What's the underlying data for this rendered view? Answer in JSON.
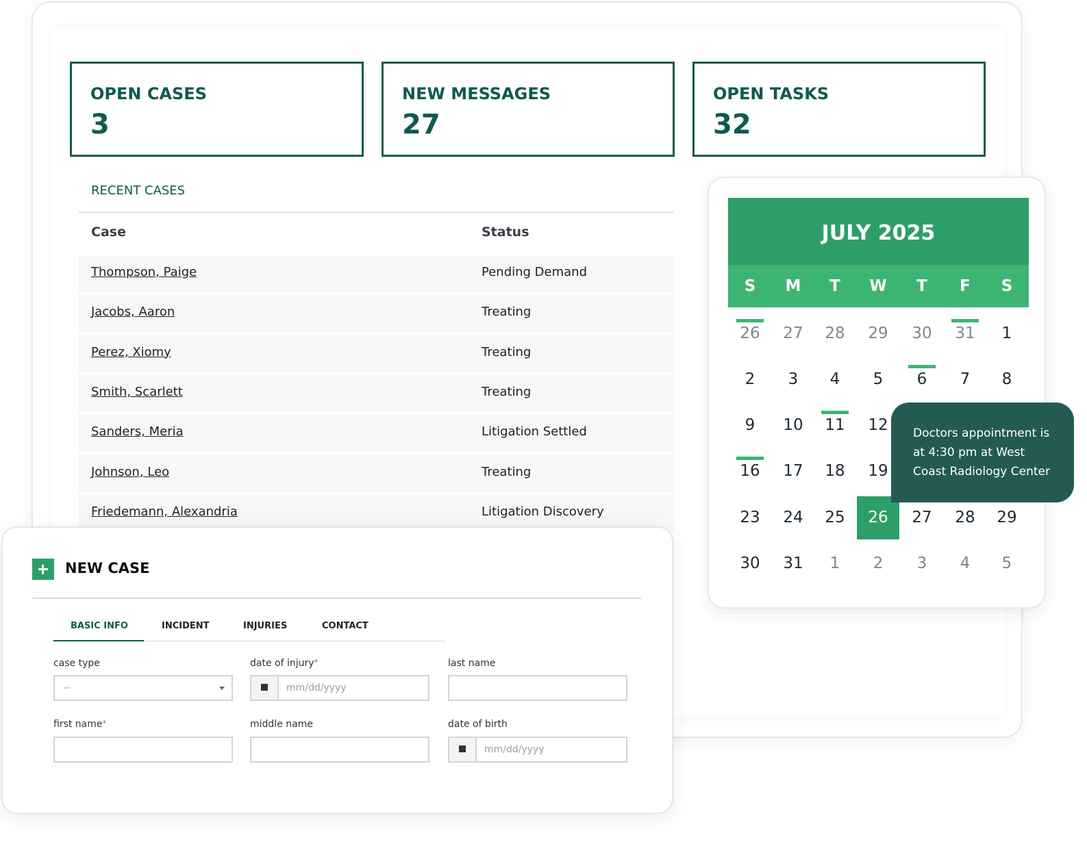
{
  "stats": [
    {
      "label": "OPEN CASES",
      "value": 3
    },
    {
      "label": "NEW MESSAGES",
      "value": 27
    },
    {
      "label": "OPEN TASKS",
      "value": 32
    }
  ],
  "recent_cases": {
    "title": "RECENT CASES",
    "columns": [
      "Case",
      "Status"
    ],
    "rows": [
      [
        "Thompson, Paige",
        "Pending Demand"
      ],
      [
        "Jacobs, Aaron",
        "Treating"
      ],
      [
        "Perez, Xiomy",
        "Treating"
      ],
      [
        "Smith, Scarlett",
        "Treating"
      ],
      [
        "Sanders, Meria",
        "Litigation Settled"
      ],
      [
        "Johnson, Leo",
        "Treating"
      ],
      [
        "Friedemann, Alexandria",
        "Litigation Discovery"
      ]
    ]
  },
  "calendar": {
    "title": "JULY 2025",
    "weekdays": [
      "S",
      "M",
      "T",
      "W",
      "T",
      "F",
      "S"
    ],
    "weeks": [
      [
        26,
        27,
        28,
        29,
        30,
        31,
        1
      ],
      [
        2,
        3,
        4,
        5,
        6,
        7,
        8
      ],
      [
        9,
        10,
        11,
        12,
        null,
        null,
        null
      ],
      [
        16,
        17,
        18,
        19,
        null,
        null,
        null
      ],
      [
        23,
        24,
        25,
        26,
        27,
        28,
        29
      ],
      [
        30,
        31,
        1,
        2,
        3,
        4,
        5
      ]
    ]
  },
  "tooltip": {
    "text": "Doctors appointment is at 4:30 pm at West Coast Radiology Center"
  },
  "new_case": {
    "title": "NEW CASE",
    "tabs": [
      "BASIC INFO",
      "INCIDENT",
      "INJURIES",
      "CONTACT"
    ],
    "fields": [
      {
        "label": "case type",
        "placeholder": "--"
      },
      {
        "label": "date of injury",
        "required": "*",
        "placeholder": "mm/dd/yyyy"
      },
      {
        "label": "last name"
      },
      {
        "label": "first name",
        "required": "*"
      },
      {
        "label": "middle name"
      },
      {
        "label": "date of birth",
        "placeholder": "mm/dd/yyyy"
      }
    ]
  }
}
